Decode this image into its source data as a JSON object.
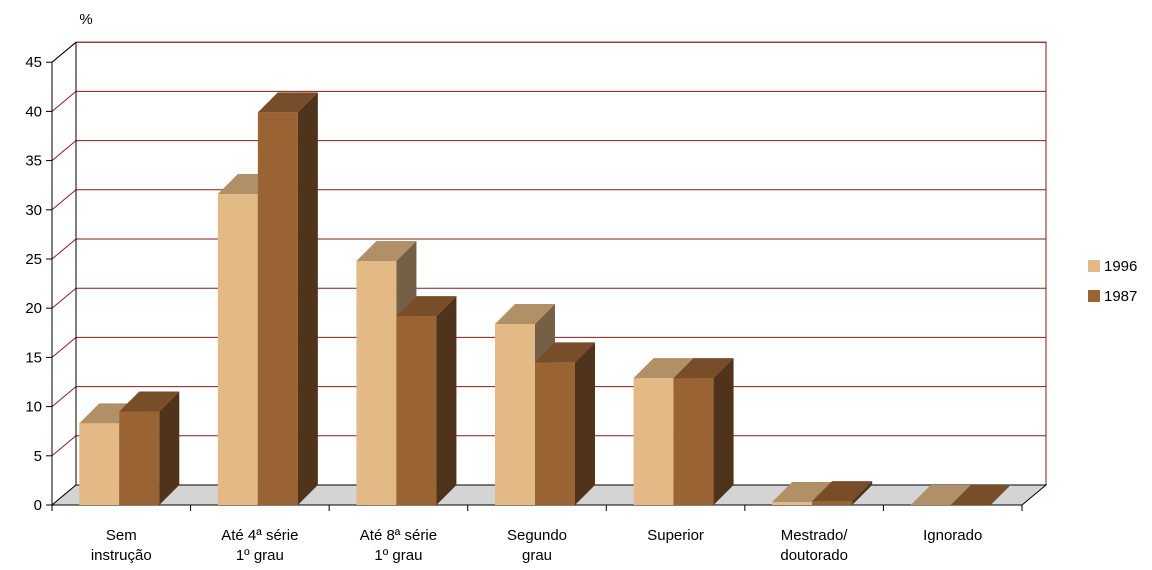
{
  "chart_data": {
    "type": "bar",
    "title": "",
    "ylabel": "%",
    "xlabel": "",
    "categories": [
      [
        "Sem",
        "instrução"
      ],
      [
        "Até 4ª série",
        "1º grau"
      ],
      [
        "Até 8ª série",
        "1º grau"
      ],
      [
        "Segundo",
        "grau"
      ],
      [
        "Superior"
      ],
      [
        "Mestrado/",
        "doutorado"
      ],
      [
        "Ignorado"
      ]
    ],
    "series": [
      {
        "name": "1996",
        "values": [
          8.3,
          31.6,
          24.8,
          18.4,
          12.9,
          0.3,
          0.0
        ],
        "color": "#E3B985"
      },
      {
        "name": "1987",
        "values": [
          9.5,
          39.9,
          19.2,
          14.5,
          12.9,
          0.4,
          0.0
        ],
        "color": "#9A6334"
      }
    ],
    "ylim": [
      0,
      45
    ],
    "yticks": [
      0,
      5,
      10,
      15,
      20,
      25,
      30,
      35,
      40,
      45
    ],
    "grid": true,
    "legend_position": "right",
    "colors": {
      "grid": "#8B1A1A",
      "floor": "#D4D4D4",
      "axis": "#000000"
    }
  }
}
